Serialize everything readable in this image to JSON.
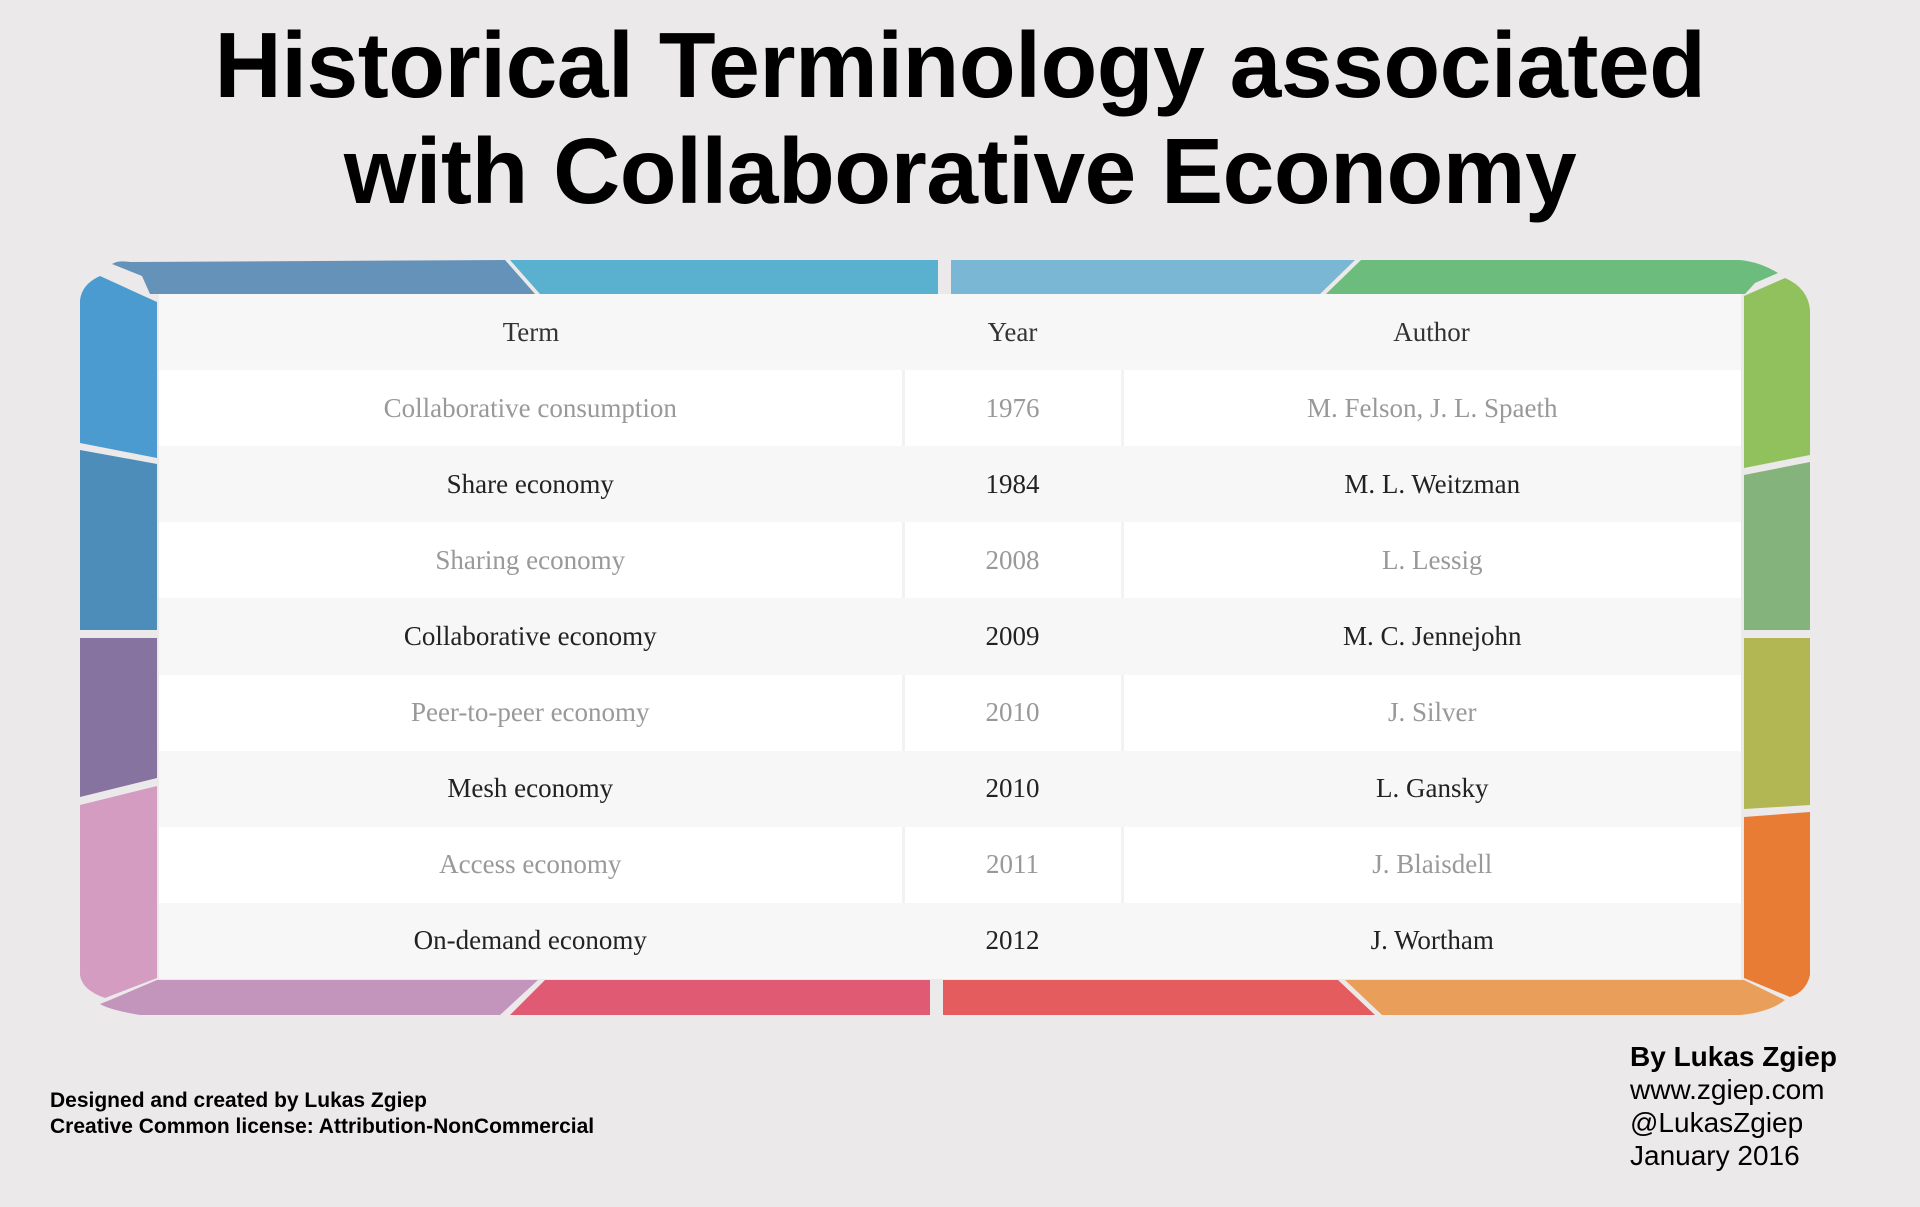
{
  "title": {
    "line1": "Historical Terminology associated",
    "line2": "with Collaborative Economy"
  },
  "table": {
    "headers": [
      "Term",
      "Year",
      "Author"
    ],
    "rows": [
      [
        "Collaborative consumption",
        "1976",
        "M. Felson, J. L. Spaeth"
      ],
      [
        "Share economy",
        "1984",
        "M. L. Weitzman"
      ],
      [
        "Sharing economy",
        "2008",
        "L. Lessig"
      ],
      [
        "Collaborative economy",
        "2009",
        "M. C. Jennejohn"
      ],
      [
        "Peer-to-peer economy",
        "2010",
        "J. Silver"
      ],
      [
        "Mesh economy",
        "2010",
        "L. Gansky"
      ],
      [
        "Access economy",
        "2011",
        "J.  Blaisdell"
      ],
      [
        "On-demand economy",
        "2012",
        "J. Wortham"
      ]
    ]
  },
  "frame_colors": {
    "top": [
      "#6592b8",
      "#59b0cf",
      "#7ab7d5",
      "#6cbc7d"
    ],
    "left": [
      "#4c9bd0",
      "#4c8db9",
      "#86739f",
      "#d59cc2"
    ],
    "right": [
      "#91c15d",
      "#84b47c",
      "#b2b653",
      "#e97c34"
    ],
    "bottom": [
      "#c395bc",
      "#e05a74",
      "#e55c5e",
      "#e99f5a"
    ]
  },
  "credits": {
    "line1": "Designed and created by Lukas Zgiep",
    "line2": "Creative Common license: Attribution-NonCommercial"
  },
  "byline": {
    "name": "By Lukas Zgiep",
    "website": "www.zgiep.com",
    "handle": "@LukasZgiep",
    "date": "January 2016"
  }
}
